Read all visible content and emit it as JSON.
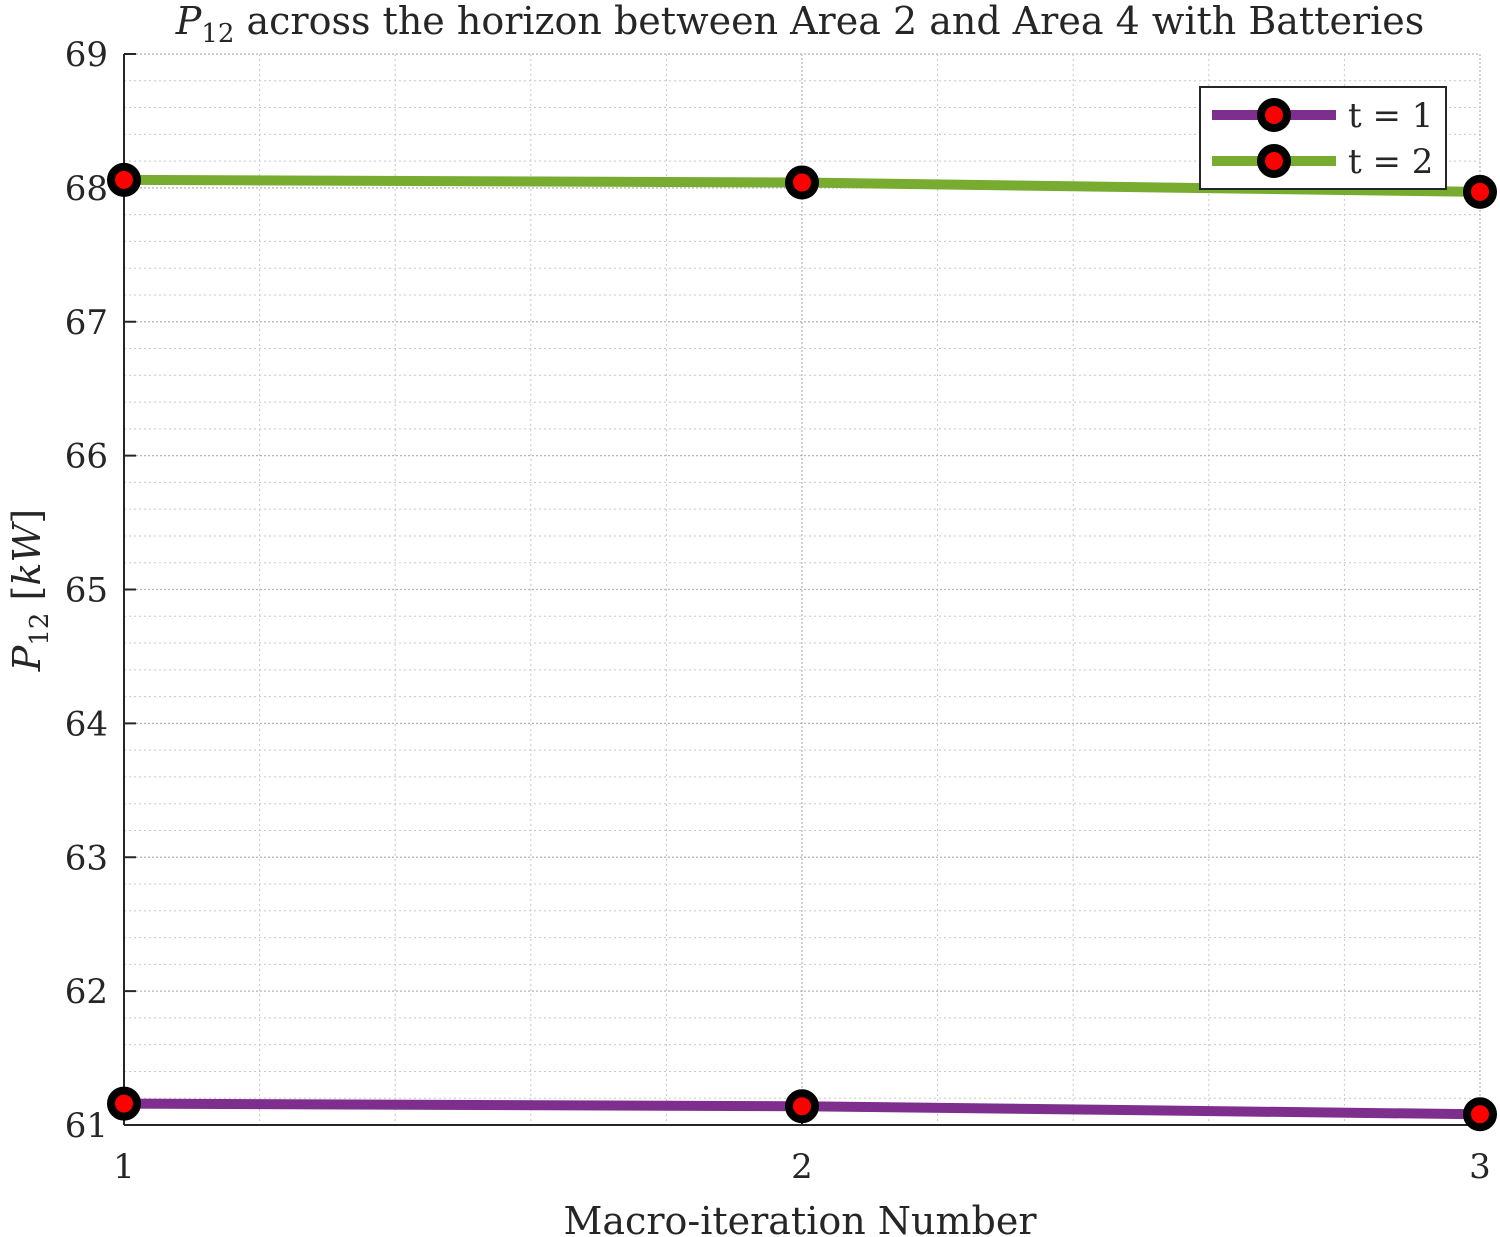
{
  "chart_data": {
    "type": "line",
    "title_var": "P",
    "title_sub": "12",
    "title_rest": " across the horizon between Area 2 and Area 4 with Batteries",
    "xlabel": "Macro-iteration Number",
    "ylabel_var": "P",
    "ylabel_sub": "12",
    "ylabel_unit_open": " [",
    "ylabel_unit": "kW",
    "ylabel_unit_close": "]",
    "x": [
      1,
      2,
      3
    ],
    "xlim": [
      1,
      3
    ],
    "ylim": [
      61,
      69
    ],
    "xticks": [
      "1",
      "2",
      "3"
    ],
    "yticks": [
      "61",
      "62",
      "63",
      "64",
      "65",
      "66",
      "67",
      "68",
      "69"
    ],
    "grid": true,
    "minor_grid": true,
    "legend_position": "top-right",
    "series": [
      {
        "name": "t = 1",
        "color": "#7e2f8e",
        "values": [
          61.16,
          61.14,
          61.08
        ]
      },
      {
        "name": "t = 2",
        "color": "#77ac30",
        "values": [
          68.06,
          68.04,
          67.97
        ]
      }
    ],
    "marker": {
      "edge_color": "#000000",
      "face_color": "#ff0000"
    }
  }
}
